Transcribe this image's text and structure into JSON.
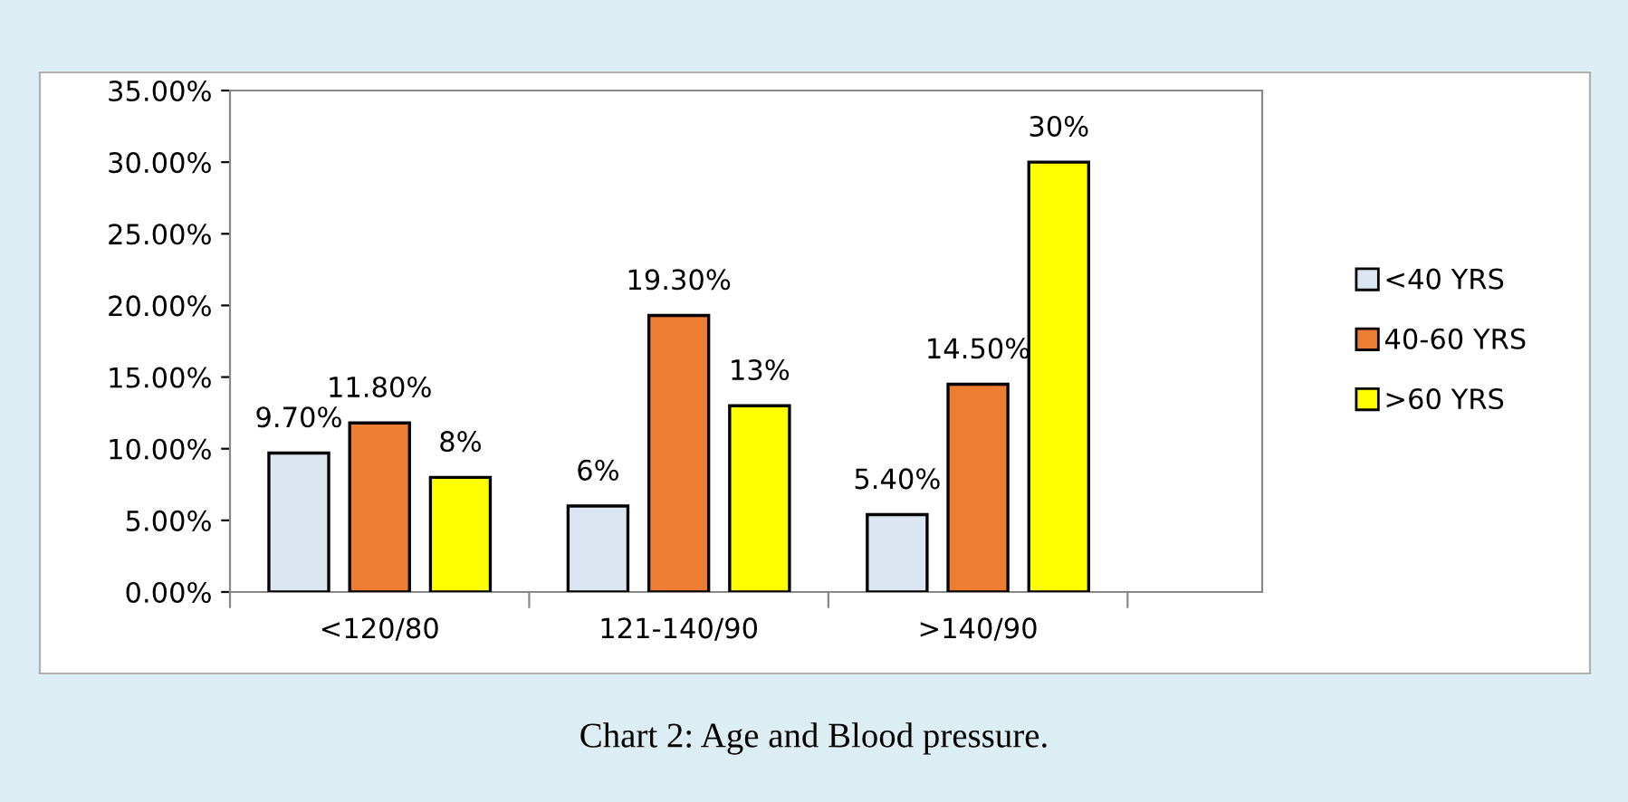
{
  "chart_data": {
    "type": "bar",
    "categories": [
      "<120/80",
      "121-140/90",
      ">140/90"
    ],
    "series": [
      {
        "name": "<40 YRS",
        "color": "#dce6f2",
        "values": [
          9.7,
          6,
          5.4
        ],
        "value_labels": [
          "9.70%",
          "6%",
          "5.40%"
        ]
      },
      {
        "name": "40-60 YRS",
        "color": "#ed7d31",
        "values": [
          11.8,
          19.3,
          14.5
        ],
        "value_labels": [
          "11.80%",
          "19.30%",
          "14.50%"
        ]
      },
      {
        "name": ">60 YRS",
        "color": "#ffff00",
        "values": [
          8,
          13,
          30
        ],
        "value_labels": [
          "8%",
          "13%",
          "30%"
        ]
      }
    ],
    "ylim": [
      0,
      35
    ],
    "yticks": [
      {
        "value": 0,
        "label": "0.00%"
      },
      {
        "value": 5,
        "label": "5.00%"
      },
      {
        "value": 10,
        "label": "10.00%"
      },
      {
        "value": 15,
        "label": "15.00%"
      },
      {
        "value": 20,
        "label": "20.00%"
      },
      {
        "value": 25,
        "label": "25.00%"
      },
      {
        "value": 30,
        "label": "30.00%"
      },
      {
        "value": 35,
        "label": "35.00%"
      }
    ],
    "grid": false,
    "legend": "right",
    "annotations": [
      "Chart 2: Age and Blood pressure."
    ]
  }
}
